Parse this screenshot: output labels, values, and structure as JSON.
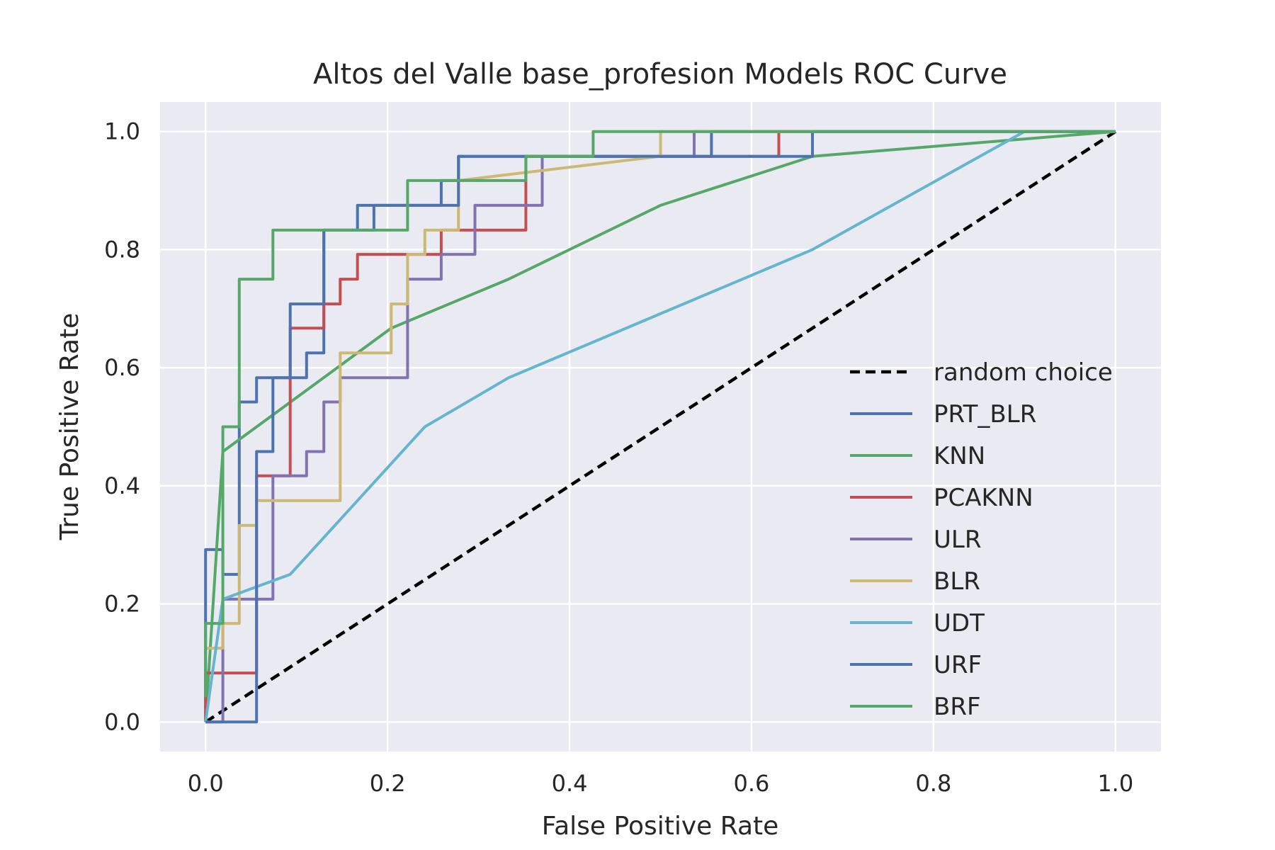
{
  "chart_data": {
    "type": "line",
    "title": "Altos del Valle base_profesion Models ROC Curve",
    "xlabel": "False Positive Rate",
    "ylabel": "True Positive Rate",
    "xlim": [
      -0.05,
      1.05
    ],
    "ylim": [
      -0.05,
      1.05
    ],
    "xticks": [
      0.0,
      0.2,
      0.4,
      0.6,
      0.8,
      1.0
    ],
    "xtick_labels": [
      "0.0",
      "0.2",
      "0.4",
      "0.6",
      "0.8",
      "1.0"
    ],
    "yticks": [
      0.0,
      0.2,
      0.4,
      0.6,
      0.8,
      1.0
    ],
    "ytick_labels": [
      "0.0",
      "0.2",
      "0.4",
      "0.6",
      "0.8",
      "1.0"
    ],
    "grid": true,
    "legend_position": "lower-right",
    "series": [
      {
        "name": "random choice",
        "color": "#000000",
        "dashed": true,
        "x": [
          0,
          1
        ],
        "y": [
          0,
          1
        ]
      },
      {
        "name": "PRT_BLR",
        "color": "#4c72b0",
        "dashed": false,
        "x": [
          0,
          0,
          0.019,
          0.019,
          0.037,
          0.037,
          0.056,
          0.056,
          0.074,
          0.074,
          0.111,
          0.111,
          0.13,
          0.13,
          0.148,
          0.148,
          0.185,
          0.185,
          0.259,
          0.259,
          0.278,
          0.278,
          0.389,
          0.389,
          0.556,
          0.556,
          1.0
        ],
        "y": [
          0,
          0.292,
          0.292,
          0.25,
          0.25,
          0.542,
          0.542,
          0.583,
          0.583,
          0.583,
          0.583,
          0.625,
          0.625,
          0.833,
          0.833,
          0.833,
          0.833,
          0.875,
          0.875,
          0.917,
          0.917,
          0.958,
          0.958,
          0.958,
          0.958,
          1.0,
          1.0
        ]
      },
      {
        "name": "KNN",
        "color": "#55a868",
        "dashed": false,
        "x": [
          0,
          0.019,
          0.204,
          0.333,
          0.5,
          0.667,
          1.0
        ],
        "y": [
          0,
          0.458,
          0.667,
          0.75,
          0.875,
          0.958,
          1.0
        ]
      },
      {
        "name": "PCAKNN",
        "color": "#c44e52",
        "dashed": false,
        "x": [
          0,
          0,
          0.056,
          0.056,
          0.093,
          0.093,
          0.13,
          0.13,
          0.148,
          0.148,
          0.167,
          0.167,
          0.259,
          0.259,
          0.352,
          0.352,
          0.63,
          0.63,
          1.0
        ],
        "y": [
          0,
          0.083,
          0.083,
          0.417,
          0.417,
          0.667,
          0.667,
          0.708,
          0.708,
          0.75,
          0.75,
          0.792,
          0.792,
          0.833,
          0.833,
          0.958,
          0.958,
          1.0,
          1.0
        ]
      },
      {
        "name": "ULR",
        "color": "#8172b2",
        "dashed": false,
        "x": [
          0,
          0.019,
          0.019,
          0.074,
          0.074,
          0.111,
          0.111,
          0.13,
          0.13,
          0.148,
          0.148,
          0.222,
          0.222,
          0.259,
          0.259,
          0.296,
          0.296,
          0.37,
          0.37,
          0.537,
          0.537,
          1.0
        ],
        "y": [
          0,
          0,
          0.208,
          0.208,
          0.417,
          0.417,
          0.458,
          0.458,
          0.542,
          0.542,
          0.583,
          0.583,
          0.75,
          0.75,
          0.792,
          0.792,
          0.875,
          0.875,
          0.958,
          0.958,
          1.0,
          1.0
        ]
      },
      {
        "name": "BLR",
        "color": "#ccb974",
        "dashed": false,
        "x": [
          0,
          0.019,
          0.019,
          0.037,
          0.037,
          0.056,
          0.056,
          0.148,
          0.148,
          0.204,
          0.204,
          0.222,
          0.222,
          0.241,
          0.241,
          0.278,
          0.278,
          0.5,
          0.5,
          1.0
        ],
        "y": [
          0.125,
          0.125,
          0.167,
          0.167,
          0.333,
          0.333,
          0.375,
          0.375,
          0.625,
          0.625,
          0.708,
          0.708,
          0.792,
          0.792,
          0.833,
          0.833,
          0.917,
          0.958,
          1.0,
          1.0
        ]
      },
      {
        "name": "UDT",
        "color": "#64b5cd",
        "dashed": false,
        "x": [
          0,
          0.019,
          0.093,
          0.241,
          0.333,
          0.667,
          0.9,
          1.0
        ],
        "y": [
          0,
          0.208,
          0.25,
          0.5,
          0.583,
          0.8,
          1.0,
          1.0
        ]
      },
      {
        "name": "URF",
        "color": "#4c72b0",
        "dashed": false,
        "x": [
          0,
          0.056,
          0.056,
          0.074,
          0.074,
          0.093,
          0.093,
          0.13,
          0.13,
          0.167,
          0.167,
          0.278,
          0.278,
          0.667,
          0.667,
          1.0
        ],
        "y": [
          0,
          0,
          0.458,
          0.458,
          0.583,
          0.583,
          0.708,
          0.708,
          0.833,
          0.833,
          0.875,
          0.875,
          0.958,
          0.958,
          1.0,
          1.0
        ]
      },
      {
        "name": "BRF",
        "color": "#55a868",
        "dashed": false,
        "x": [
          0,
          0,
          0.019,
          0.019,
          0.037,
          0.037,
          0.074,
          0.074,
          0.222,
          0.222,
          0.352,
          0.352,
          0.426,
          0.426,
          1.0
        ],
        "y": [
          0.042,
          0.167,
          0.167,
          0.5,
          0.5,
          0.75,
          0.75,
          0.833,
          0.833,
          0.917,
          0.917,
          0.958,
          0.958,
          1.0,
          1.0
        ]
      }
    ]
  }
}
